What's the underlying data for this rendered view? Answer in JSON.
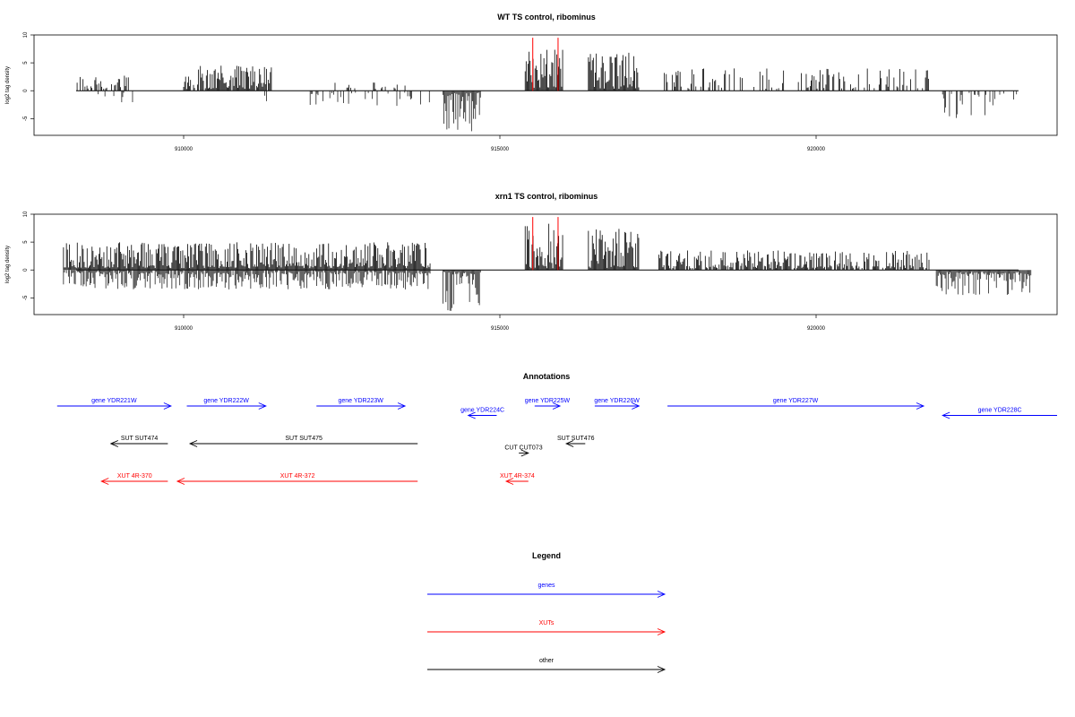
{
  "chart_data": [
    {
      "type": "bar",
      "title": "WT TS control, ribominus",
      "ylabel": "log2 tag density",
      "xlim": [
        908000,
        923500
      ],
      "ylim": [
        -8,
        10
      ],
      "x_ticks": [
        "910000",
        "915000",
        "920000"
      ],
      "y_ticks": [
        "10",
        "5",
        "0",
        "-5"
      ],
      "highlight_positions": [
        915520,
        915920
      ],
      "series": [
        {
          "region": [
            908300,
            909200
          ],
          "direction": "up",
          "max": 3.0,
          "density": 0.5
        },
        {
          "region": [
            908600,
            909300
          ],
          "direction": "down",
          "max": 2.5,
          "density": 0.15
        },
        {
          "region": [
            910000,
            911400
          ],
          "direction": "up",
          "max": 4.5,
          "density": 0.9
        },
        {
          "region": [
            911000,
            911400
          ],
          "direction": "down",
          "max": 2.0,
          "density": 0.2
        },
        {
          "region": [
            912000,
            914000
          ],
          "direction": "down",
          "max": 2.8,
          "density": 0.25
        },
        {
          "region": [
            912300,
            913500
          ],
          "direction": "up",
          "max": 1.5,
          "density": 0.15
        },
        {
          "region": [
            914100,
            914700
          ],
          "direction": "down",
          "max": 7.5,
          "density": 1.0
        },
        {
          "region": [
            915400,
            916000
          ],
          "direction": "up",
          "max": 7.5,
          "density": 1.0
        },
        {
          "region": [
            916400,
            917200
          ],
          "direction": "up",
          "max": 7.0,
          "density": 1.0
        },
        {
          "region": [
            917600,
            921800
          ],
          "direction": "up",
          "max": 4.0,
          "density": 0.35
        },
        {
          "region": [
            922000,
            923200
          ],
          "direction": "down",
          "max": 5.0,
          "density": 0.3
        }
      ]
    },
    {
      "type": "bar",
      "title": "xrn1 TS control, ribominus",
      "ylabel": "log2 tag density",
      "xlim": [
        908000,
        923500
      ],
      "ylim": [
        -8,
        10
      ],
      "x_ticks": [
        "910000",
        "915000",
        "920000"
      ],
      "y_ticks": [
        "10",
        "5",
        "0",
        "-5"
      ],
      "highlight_positions": [
        915520,
        915920
      ],
      "series": [
        {
          "region": [
            908100,
            913900
          ],
          "direction": "up",
          "max": 5.0,
          "density": 1.0
        },
        {
          "region": [
            908100,
            913900
          ],
          "direction": "down",
          "max": 3.5,
          "density": 0.9
        },
        {
          "region": [
            914100,
            914700
          ],
          "direction": "down",
          "max": 7.5,
          "density": 1.0
        },
        {
          "region": [
            915400,
            916000
          ],
          "direction": "up",
          "max": 8.5,
          "density": 1.0
        },
        {
          "region": [
            916400,
            917200
          ],
          "direction": "up",
          "max": 7.5,
          "density": 1.0
        },
        {
          "region": [
            917500,
            921800
          ],
          "direction": "up",
          "max": 3.5,
          "density": 0.8
        },
        {
          "region": [
            921900,
            923400
          ],
          "direction": "down",
          "max": 4.5,
          "density": 1.0
        }
      ]
    }
  ],
  "annotations": {
    "title": "Annotations",
    "rows": [
      {
        "label": "gene YDR221W",
        "color": "#0000ff",
        "start": 908000,
        "end": 909800,
        "dir": "right",
        "row": 0
      },
      {
        "label": "gene YDR222W",
        "color": "#0000ff",
        "start": 910050,
        "end": 911300,
        "dir": "right",
        "row": 0
      },
      {
        "label": "gene YDR223W",
        "color": "#0000ff",
        "start": 912100,
        "end": 913500,
        "dir": "right",
        "row": 0
      },
      {
        "label": "gene YDR224C",
        "color": "#0000ff",
        "start": 914500,
        "end": 914950,
        "dir": "left",
        "row": 0.5
      },
      {
        "label": "gene YDR225W",
        "color": "#0000ff",
        "start": 915550,
        "end": 915950,
        "dir": "right",
        "row": 0
      },
      {
        "label": "gene YDR226W",
        "color": "#0000ff",
        "start": 916500,
        "end": 917200,
        "dir": "right",
        "row": 0
      },
      {
        "label": "gene YDR227W",
        "color": "#0000ff",
        "start": 917650,
        "end": 921700,
        "dir": "right",
        "row": 0
      },
      {
        "label": "gene YDR228C",
        "color": "#0000ff",
        "start": 922000,
        "end": 923900,
        "dir": "left",
        "row": 0.5
      },
      {
        "label": "SUT SUT474",
        "color": "#000000",
        "start": 908850,
        "end": 909750,
        "dir": "left",
        "row": 2
      },
      {
        "label": "SUT SUT475",
        "color": "#000000",
        "start": 910100,
        "end": 913700,
        "dir": "left",
        "row": 2
      },
      {
        "label": "CUT CUT073",
        "color": "#000000",
        "start": 915300,
        "end": 915450,
        "dir": "right",
        "row": 2.5
      },
      {
        "label": "SUT SUT476",
        "color": "#000000",
        "start": 916050,
        "end": 916350,
        "dir": "left",
        "row": 2
      },
      {
        "label": "XUT 4R-370",
        "color": "#ff0000",
        "start": 908700,
        "end": 909750,
        "dir": "left",
        "row": 4
      },
      {
        "label": "XUT 4R-372",
        "color": "#ff0000",
        "start": 909900,
        "end": 913700,
        "dir": "left",
        "row": 4
      },
      {
        "label": "XUT 4R-374",
        "color": "#ff0000",
        "start": 915100,
        "end": 915450,
        "dir": "left",
        "row": 4
      }
    ]
  },
  "legend": {
    "title": "Legend",
    "items": [
      {
        "label": "genes",
        "color": "#0000ff"
      },
      {
        "label": "XUTs",
        "color": "#ff0000"
      },
      {
        "label": "other",
        "color": "#000000"
      }
    ]
  }
}
